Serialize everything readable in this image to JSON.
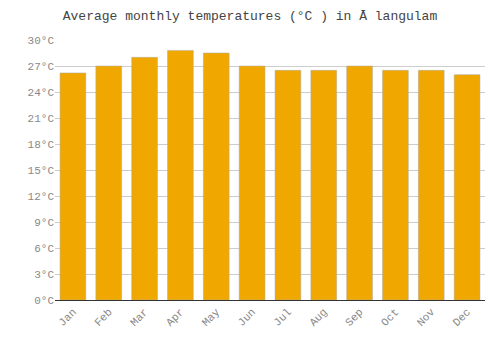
{
  "chart_data": {
    "type": "bar",
    "title": "Average monthly temperatures (°C ) in Ā langulam",
    "categories": [
      "Jan",
      "Feb",
      "Mar",
      "Apr",
      "May",
      "Jun",
      "Jul",
      "Aug",
      "Sep",
      "Oct",
      "Nov",
      "Dec"
    ],
    "values": [
      26.2,
      27.0,
      28.0,
      28.8,
      28.5,
      27.0,
      26.5,
      26.5,
      27.0,
      26.5,
      26.5,
      26.0
    ],
    "color": "#F0A800",
    "ylim": [
      0,
      30
    ],
    "yticks": [
      {
        "value": 0,
        "label": "0°C"
      },
      {
        "value": 3,
        "label": "3°C"
      },
      {
        "value": 6,
        "label": "6°C"
      },
      {
        "value": 9,
        "label": "9°C"
      },
      {
        "value": 12,
        "label": "12°C"
      },
      {
        "value": 15,
        "label": "15°C"
      },
      {
        "value": 18,
        "label": "18°C"
      },
      {
        "value": 21,
        "label": "21°C"
      },
      {
        "value": 24,
        "label": "24°C"
      },
      {
        "value": 27,
        "label": "27°C"
      },
      {
        "value": 30,
        "label": "30°C"
      }
    ],
    "grid": true
  }
}
